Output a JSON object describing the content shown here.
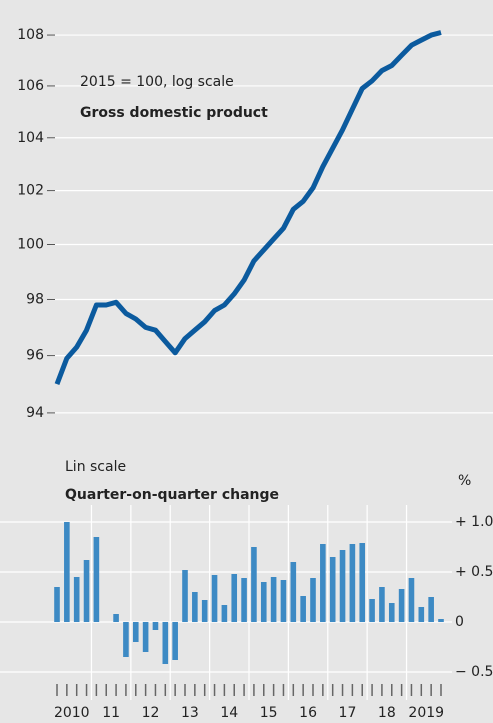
{
  "chart_data": [
    {
      "type": "line",
      "subtitle": "2015 = 100, log scale",
      "title": "Gross domestic product",
      "log_scale": true,
      "grid": true,
      "color": "#0b5a9e",
      "values": [
        95.0,
        95.9,
        96.3,
        96.9,
        97.8,
        97.8,
        97.9,
        97.5,
        97.3,
        97.0,
        96.9,
        96.5,
        96.1,
        96.6,
        96.9,
        97.2,
        97.6,
        97.8,
        98.2,
        98.7,
        99.4,
        99.8,
        100.2,
        100.6,
        101.3,
        101.6,
        102.1,
        102.9,
        103.6,
        104.3,
        105.1,
        105.9,
        106.2,
        106.6,
        106.8,
        107.2,
        107.6,
        107.8,
        108.0,
        108.1
      ],
      "ylim": [
        93,
        109.4
      ],
      "yticks": [
        94,
        96,
        98,
        100,
        102,
        104,
        106,
        108
      ]
    },
    {
      "type": "bar",
      "subtitle": "Lin scale",
      "title": "Quarter-on-quarter change",
      "y_unit": "%",
      "grid": true,
      "color": "#3d8ac4",
      "categories": [
        null,
        "2010",
        null,
        null,
        null,
        "11",
        null,
        null,
        null,
        "12",
        null,
        null,
        null,
        "13",
        null,
        null,
        null,
        "14",
        null,
        null,
        null,
        "15",
        null,
        null,
        null,
        "16",
        null,
        null,
        null,
        "17",
        null,
        null,
        null,
        "18",
        null,
        null,
        null,
        "2019",
        null,
        null
      ],
      "values": [
        0.35,
        1.0,
        0.45,
        0.62,
        0.85,
        0.0,
        0.08,
        -0.35,
        -0.2,
        -0.3,
        -0.08,
        -0.42,
        -0.38,
        0.52,
        0.3,
        0.22,
        0.47,
        0.17,
        0.48,
        0.44,
        0.75,
        0.4,
        0.45,
        0.42,
        0.6,
        0.26,
        0.44,
        0.78,
        0.65,
        0.72,
        0.78,
        0.79,
        0.23,
        0.35,
        0.19,
        0.33,
        0.44,
        0.15,
        0.25,
        0.03
      ],
      "ylim": [
        -0.68,
        1.17
      ],
      "yticks": [
        {
          "value": 1.0,
          "label": "+ 1.0"
        },
        {
          "value": 0.5,
          "label": "+ 0.5"
        },
        0,
        {
          "value": -0.5,
          "label": "− 0.5"
        }
      ]
    }
  ]
}
